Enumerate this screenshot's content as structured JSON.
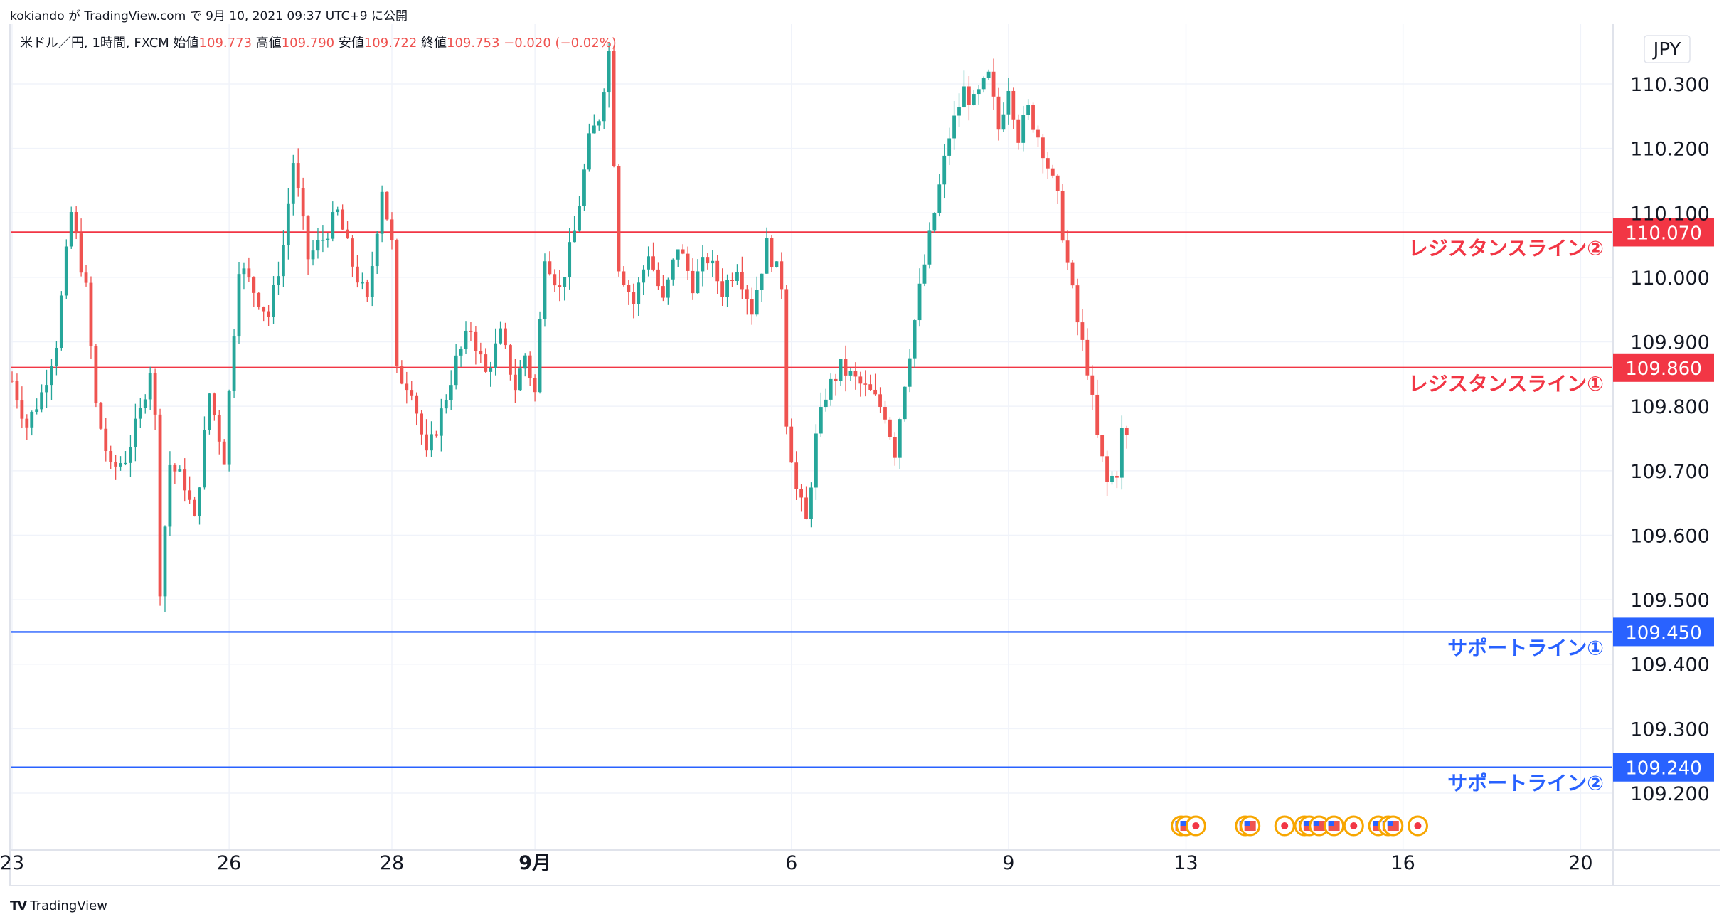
{
  "header": {
    "publish_line": "kokiando が TradingView.com で 9月 10, 2021 09:37 UTC+9 に公開"
  },
  "footer": {
    "brand": "TradingView"
  },
  "colors": {
    "up": "#26a69a",
    "down": "#ef5350",
    "resistance": "#f23645",
    "support": "#2962ff",
    "grid": "#f0f3fa",
    "axis_text": "#131722"
  },
  "chart_data": {
    "type": "candlestick",
    "symbol_line": {
      "prefix": "米ドル／円, 1時間, FXCM",
      "open_label": "始値",
      "open": "109.773",
      "high_label": "高値",
      "high": "109.790",
      "low_label": "安値",
      "low": "109.722",
      "close_label": "終値",
      "close": "109.753",
      "change": "−0.020 (−0.02%)"
    },
    "currency": "JPY",
    "y_ticks": [
      "110.300",
      "110.200",
      "110.100",
      "110.000",
      "109.900",
      "109.800",
      "109.700",
      "109.600",
      "109.500",
      "109.400",
      "109.300",
      "109.200"
    ],
    "ylim": [
      109.12,
      110.42
    ],
    "x_ticks": [
      {
        "label": "23",
        "index": 0,
        "bold": false
      },
      {
        "label": "26",
        "index": 44,
        "bold": false
      },
      {
        "label": "28",
        "index": 77,
        "bold": false
      },
      {
        "label": "9月",
        "index": 106,
        "bold": true
      },
      {
        "label": "6",
        "index": 158,
        "bold": false
      },
      {
        "label": "9",
        "index": 202,
        "bold": false
      },
      {
        "label": "13",
        "index": 238,
        "bold": false
      },
      {
        "label": "16",
        "index": 282,
        "bold": false
      },
      {
        "label": "20",
        "index": 318,
        "bold": false
      }
    ],
    "horizontal_lines": [
      {
        "price": 110.07,
        "label": "110.070",
        "name": "レジスタンスライン②",
        "kind": "resistance"
      },
      {
        "price": 109.86,
        "label": "109.860",
        "name": "レジスタンスライン①",
        "kind": "resistance"
      },
      {
        "price": 109.45,
        "label": "109.450",
        "name": "サポートライン①",
        "kind": "support"
      },
      {
        "price": 109.24,
        "label": "109.240",
        "name": "サポートライン②",
        "kind": "support"
      }
    ],
    "price_path": [
      [
        0,
        109.84
      ],
      [
        3,
        109.77
      ],
      [
        6,
        109.82
      ],
      [
        9,
        109.9
      ],
      [
        12,
        110.1
      ],
      [
        15,
        109.98
      ],
      [
        17,
        109.8
      ],
      [
        20,
        109.7
      ],
      [
        23,
        109.72
      ],
      [
        26,
        109.79
      ],
      [
        28,
        109.86
      ],
      [
        29,
        109.78
      ],
      [
        30,
        109.52
      ],
      [
        32,
        109.71
      ],
      [
        35,
        109.68
      ],
      [
        37,
        109.62
      ],
      [
        40,
        109.82
      ],
      [
        43,
        109.72
      ],
      [
        46,
        110.02
      ],
      [
        49,
        109.98
      ],
      [
        52,
        109.94
      ],
      [
        55,
        110.05
      ],
      [
        57,
        110.18
      ],
      [
        60,
        110.03
      ],
      [
        63,
        110.06
      ],
      [
        66,
        110.1
      ],
      [
        69,
        110.02
      ],
      [
        72,
        109.96
      ],
      [
        75,
        110.14
      ],
      [
        77,
        110.05
      ],
      [
        78,
        109.85
      ],
      [
        81,
        109.83
      ],
      [
        84,
        109.72
      ],
      [
        87,
        109.79
      ],
      [
        90,
        109.87
      ],
      [
        93,
        109.92
      ],
      [
        96,
        109.85
      ],
      [
        99,
        109.91
      ],
      [
        102,
        109.83
      ],
      [
        104,
        109.88
      ],
      [
        106,
        109.82
      ],
      [
        108,
        110.04
      ],
      [
        111,
        109.98
      ],
      [
        114,
        110.07
      ],
      [
        117,
        110.21
      ],
      [
        119,
        110.25
      ],
      [
        121,
        110.35
      ],
      [
        123,
        110.02
      ],
      [
        126,
        109.96
      ],
      [
        129,
        110.04
      ],
      [
        132,
        109.96
      ],
      [
        135,
        110.05
      ],
      [
        138,
        109.99
      ],
      [
        141,
        110.03
      ],
      [
        144,
        109.98
      ],
      [
        147,
        110.02
      ],
      [
        150,
        109.95
      ],
      [
        153,
        110.05
      ],
      [
        156,
        109.99
      ],
      [
        157,
        109.78
      ],
      [
        159,
        109.67
      ],
      [
        161,
        109.62
      ],
      [
        163,
        109.75
      ],
      [
        165,
        109.82
      ],
      [
        168,
        109.86
      ],
      [
        171,
        109.84
      ],
      [
        174,
        109.82
      ],
      [
        177,
        109.79
      ],
      [
        179,
        109.73
      ],
      [
        181,
        109.84
      ],
      [
        184,
        109.98
      ],
      [
        187,
        110.1
      ],
      [
        190,
        110.22
      ],
      [
        193,
        110.29
      ],
      [
        195,
        110.27
      ],
      [
        198,
        110.31
      ],
      [
        200,
        110.23
      ],
      [
        202,
        110.3
      ],
      [
        204,
        110.22
      ],
      [
        206,
        110.26
      ],
      [
        209,
        110.2
      ],
      [
        212,
        110.12
      ],
      [
        214,
        110.02
      ],
      [
        216,
        109.93
      ],
      [
        218,
        109.86
      ],
      [
        220,
        109.75
      ],
      [
        222,
        109.68
      ],
      [
        224,
        109.7
      ],
      [
        225,
        109.76
      ],
      [
        226,
        109.75
      ]
    ],
    "events": [
      {
        "kind": "us",
        "index": 237
      },
      {
        "kind": "us",
        "index": 238
      },
      {
        "kind": "jp",
        "index": 240
      },
      {
        "kind": "us",
        "index": 250
      },
      {
        "kind": "us",
        "index": 251
      },
      {
        "kind": "jp",
        "index": 258
      },
      {
        "kind": "us",
        "index": 262
      },
      {
        "kind": "us",
        "index": 263
      },
      {
        "kind": "us",
        "index": 265
      },
      {
        "kind": "us",
        "index": 268
      },
      {
        "kind": "jp",
        "index": 272
      },
      {
        "kind": "us",
        "index": 277
      },
      {
        "kind": "us",
        "index": 279
      },
      {
        "kind": "us",
        "index": 280
      },
      {
        "kind": "jp",
        "index": 285
      }
    ]
  }
}
